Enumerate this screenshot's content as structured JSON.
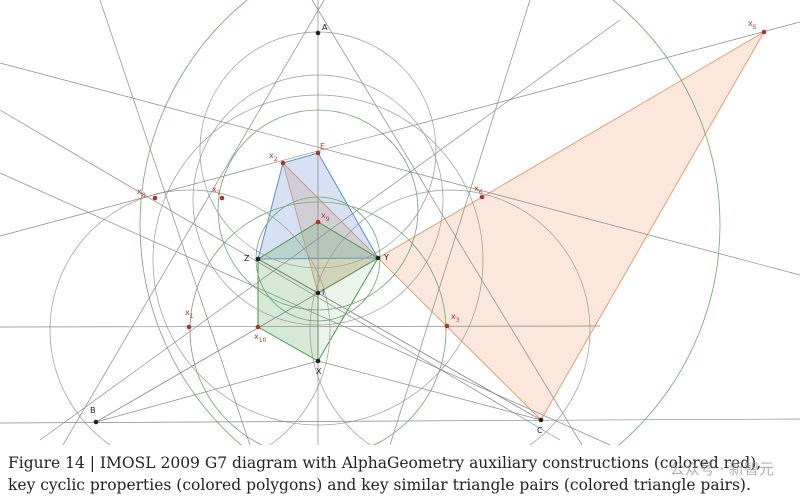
{
  "figure": {
    "points": [
      {
        "label": "A"
      },
      {
        "label": "E"
      },
      {
        "label": "x",
        "sub": "2"
      },
      {
        "label": "x",
        "sub": "8"
      },
      {
        "label": "x",
        "sub": "7"
      },
      {
        "label": "x",
        "sub": "9"
      },
      {
        "label": "x",
        "sub": "6"
      },
      {
        "label": "Z"
      },
      {
        "label": "Y"
      },
      {
        "label": "I"
      },
      {
        "label": "x",
        "sub": "1"
      },
      {
        "label": "x",
        "sub": "3"
      },
      {
        "label": "x",
        "sub": "10"
      },
      {
        "label": "X"
      },
      {
        "label": "B"
      },
      {
        "label": "C"
      },
      {
        "label": "x",
        "sub": "5"
      }
    ]
  },
  "caption": "Figure 14 | IMOSL 2009 G7 diagram with AlphaGeometry auxiliary constructions (colored red), key cyclic properties (colored polygons) and key similar triangle pairs (colored triangle pairs).",
  "watermark": "公众号 · 新智元"
}
